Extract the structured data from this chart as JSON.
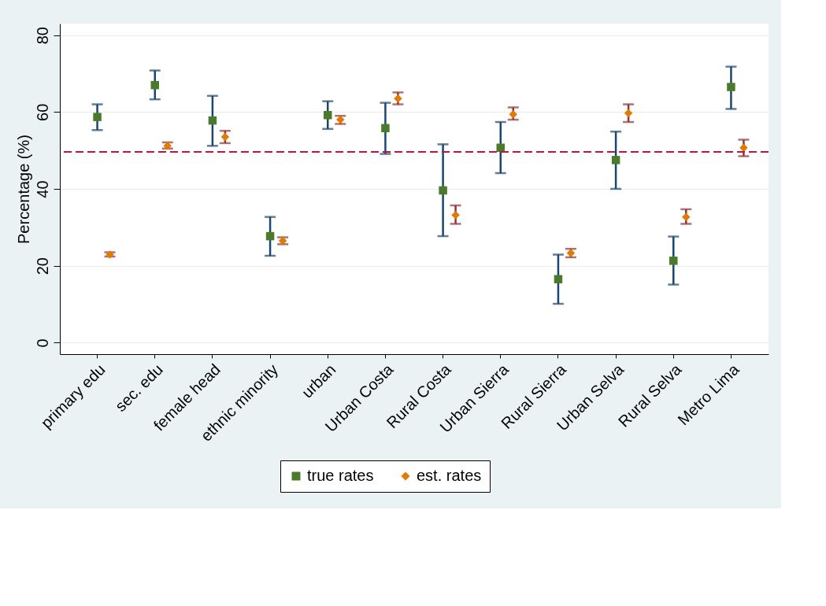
{
  "chart_data": {
    "type": "scatter",
    "ylabel": "Percentage (%)",
    "categories": [
      "primary edu",
      "sec. edu",
      "female head",
      "ethnic minority",
      "urban",
      "Urban Costa",
      "Rural Costa",
      "Urban Sierra",
      "Rural Sierra",
      "Urban Selva",
      "Rural Selva",
      "Metro Lima"
    ],
    "series": [
      {
        "name": "true rates",
        "color": "#4b7a2b",
        "marker": "square",
        "values": [
          58.7,
          67.0,
          57.8,
          27.7,
          59.2,
          55.8,
          39.6,
          50.7,
          16.5,
          47.5,
          21.3,
          66.5
        ],
        "errors": [
          [
            55.3,
            62.0
          ],
          [
            63.3,
            70.8
          ],
          [
            51.2,
            64.2
          ],
          [
            22.6,
            32.7
          ],
          [
            55.6,
            62.8
          ],
          [
            49.1,
            62.4
          ],
          [
            27.7,
            51.6
          ],
          [
            44.1,
            57.4
          ],
          [
            10.1,
            22.9
          ],
          [
            40.0,
            54.9
          ],
          [
            15.1,
            27.6
          ],
          [
            60.8,
            71.8
          ]
        ]
      },
      {
        "name": "est. rates",
        "color": "#e07b00",
        "marker": "diamond",
        "values": [
          22.9,
          51.2,
          53.5,
          26.5,
          58.0,
          63.5,
          33.2,
          59.4,
          23.3,
          59.7,
          32.7,
          50.7
        ],
        "errors": [
          [
            22.4,
            23.5
          ],
          [
            50.5,
            52.1
          ],
          [
            51.9,
            55.1
          ],
          [
            25.6,
            27.4
          ],
          [
            56.9,
            59.0
          ],
          [
            62.0,
            65.1
          ],
          [
            30.9,
            35.7
          ],
          [
            58.0,
            61.2
          ],
          [
            22.2,
            24.4
          ],
          [
            57.4,
            62.0
          ],
          [
            30.9,
            34.7
          ],
          [
            48.5,
            52.8
          ]
        ]
      }
    ],
    "ylim": [
      -3,
      83
    ],
    "yticks": [
      0,
      20,
      40,
      60,
      80
    ],
    "grid": "y",
    "legend": "bottom",
    "ref_lines": [
      {
        "axis": "y",
        "value": 49.6,
        "color": "#c0143c",
        "line_style": "dashed"
      }
    ]
  }
}
